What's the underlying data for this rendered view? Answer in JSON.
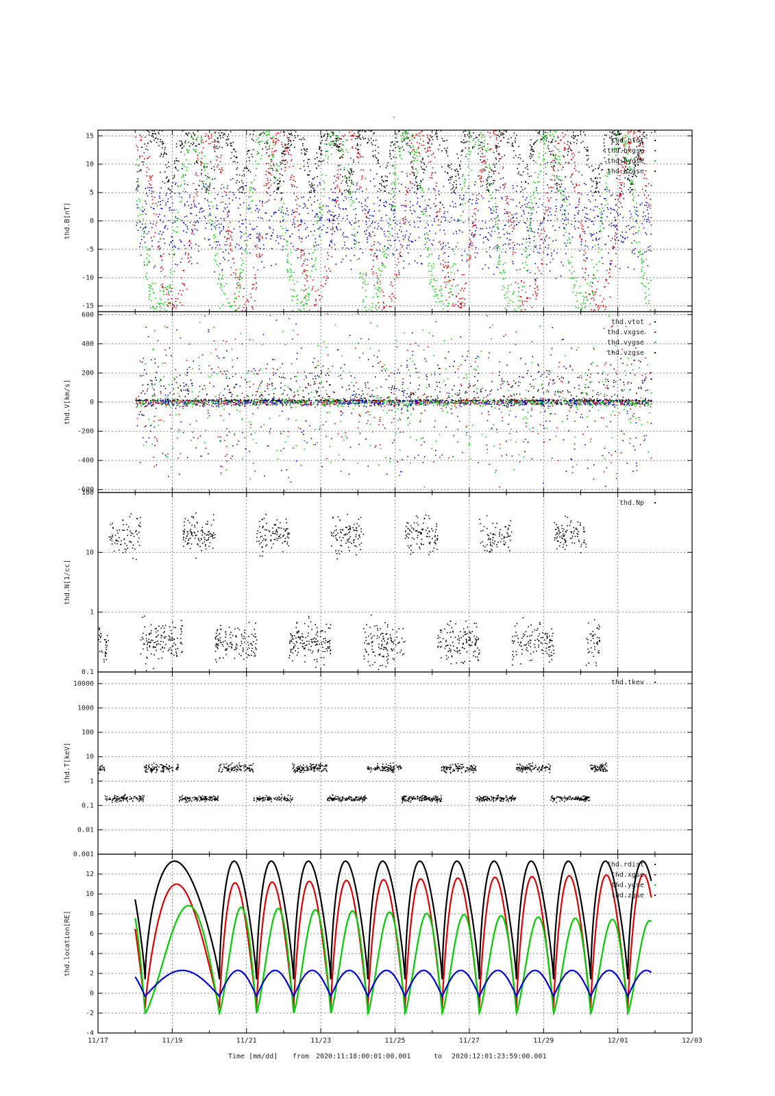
{
  "figure": {
    "title": "-",
    "time_label": "Time [mm/dd]",
    "range_from_label": "from",
    "range_from": "2020:11:18:00:01:00.001",
    "range_to_label": "to",
    "range_to": "2020:12:01:23:59:00.001"
  },
  "colors": {
    "black": "#000000",
    "red": "#dd0000",
    "green": "#00cc00",
    "blue": "#0000cc"
  },
  "chart_data": [
    {
      "type": "scatter",
      "id": "B",
      "ylabel": "thd.B[nT]",
      "ylim": [
        -16,
        16
      ],
      "yscale": "linear",
      "yticks": [
        -15,
        -10,
        -5,
        0,
        5,
        10,
        15
      ],
      "yticklabels": [
        "-15",
        "-10",
        "-5",
        "0",
        "5",
        "10",
        "15"
      ],
      "xlim": [
        0,
        16
      ],
      "xticks": [
        0,
        2,
        4,
        6,
        8,
        10,
        12,
        14,
        16
      ],
      "xticklabels": [
        "11/17",
        "11/19",
        "11/21",
        "11/23",
        "11/25",
        "11/27",
        "11/29",
        "12/01",
        "12/03"
      ],
      "grid": true,
      "legend_position": "top-right",
      "series": [
        {
          "name": "thd.btot",
          "color": "#000000"
        },
        {
          "name": "thd.bxgse",
          "color": "#dd0000"
        },
        {
          "name": "thd.bygse",
          "color": "#00cc00"
        },
        {
          "name": "thd.bzgse",
          "color": "#0000cc"
        }
      ]
    },
    {
      "type": "scatter",
      "id": "V",
      "ylabel": "thd.V[km/s]",
      "ylim": [
        -620,
        620
      ],
      "yscale": "linear",
      "yticks": [
        -600,
        -400,
        -200,
        0,
        200,
        400,
        600
      ],
      "yticklabels": [
        "-600",
        "-400",
        "-200",
        "0",
        "200",
        "400",
        "600"
      ],
      "xlim": [
        0,
        16
      ],
      "grid": true,
      "legend_position": "top-right",
      "series": [
        {
          "name": "thd.vtot",
          "color": "#000000"
        },
        {
          "name": "thd.vxgse",
          "color": "#dd0000"
        },
        {
          "name": "thd.vygse",
          "color": "#00cc00"
        },
        {
          "name": "thd.vzgse",
          "color": "#0000cc"
        }
      ]
    },
    {
      "type": "scatter",
      "id": "N",
      "ylabel": "thd.N[1/cc]",
      "ylim": [
        0.1,
        100
      ],
      "yscale": "log",
      "yticks": [
        0.1,
        1,
        10,
        100
      ],
      "yticklabels": [
        "0.1",
        "1",
        "10",
        "100"
      ],
      "xlim": [
        0,
        16
      ],
      "grid": true,
      "legend_position": "top-right",
      "series": [
        {
          "name": "thd.Np",
          "color": "#000000"
        }
      ]
    },
    {
      "type": "scatter",
      "id": "T",
      "ylabel": "thd.T[keV]",
      "ylim": [
        0.001,
        30000
      ],
      "yscale": "log",
      "yticks": [
        0.001,
        0.01,
        0.1,
        1,
        10,
        100,
        1000,
        10000
      ],
      "yticklabels": [
        "0.001",
        "0.01",
        "0.1",
        "1",
        "10",
        "100",
        "1000",
        "10000"
      ],
      "xlim": [
        0,
        16
      ],
      "grid": true,
      "legend_position": "top-right",
      "series": [
        {
          "name": "thd.tkev",
          "color": "#000000"
        }
      ]
    },
    {
      "type": "line",
      "id": "loc",
      "ylabel": "thd.location[RE]",
      "ylim": [
        -4,
        14
      ],
      "yscale": "linear",
      "yticks": [
        -4,
        -2,
        0,
        2,
        4,
        6,
        8,
        10,
        12
      ],
      "yticklabels": [
        "-4",
        "-2",
        "0",
        "2",
        "4",
        "6",
        "8",
        "10",
        "12"
      ],
      "xlim": [
        0,
        16
      ],
      "xticks": [
        0,
        2,
        4,
        6,
        8,
        10,
        12,
        14,
        16
      ],
      "xticklabels": [
        "11/17",
        "11/19",
        "11/21",
        "11/23",
        "11/25",
        "11/27",
        "11/29",
        "12/01",
        "12/03"
      ],
      "grid": true,
      "legend_position": "top-right",
      "orbit_minima_days": [
        1.27,
        3.27,
        4.27,
        5.27,
        6.27,
        7.27,
        8.27,
        9.27,
        10.27,
        11.27,
        12.27,
        13.27,
        14.27
      ],
      "series": [
        {
          "name": "thd.rdist",
          "color": "#000000",
          "apogee": 13.3,
          "perigee": 1.4
        },
        {
          "name": "thd.xgse",
          "color": "#dd0000",
          "max_start": 10.9,
          "max_end": 12.0,
          "min": -1.5
        },
        {
          "name": "thd.ygse",
          "color": "#00cc00",
          "max_start": 9.0,
          "max_end": 7.3,
          "min": -2.0
        },
        {
          "name": "thd.zgse",
          "color": "#0000cc",
          "max": 2.3,
          "min": -0.3
        }
      ]
    }
  ]
}
